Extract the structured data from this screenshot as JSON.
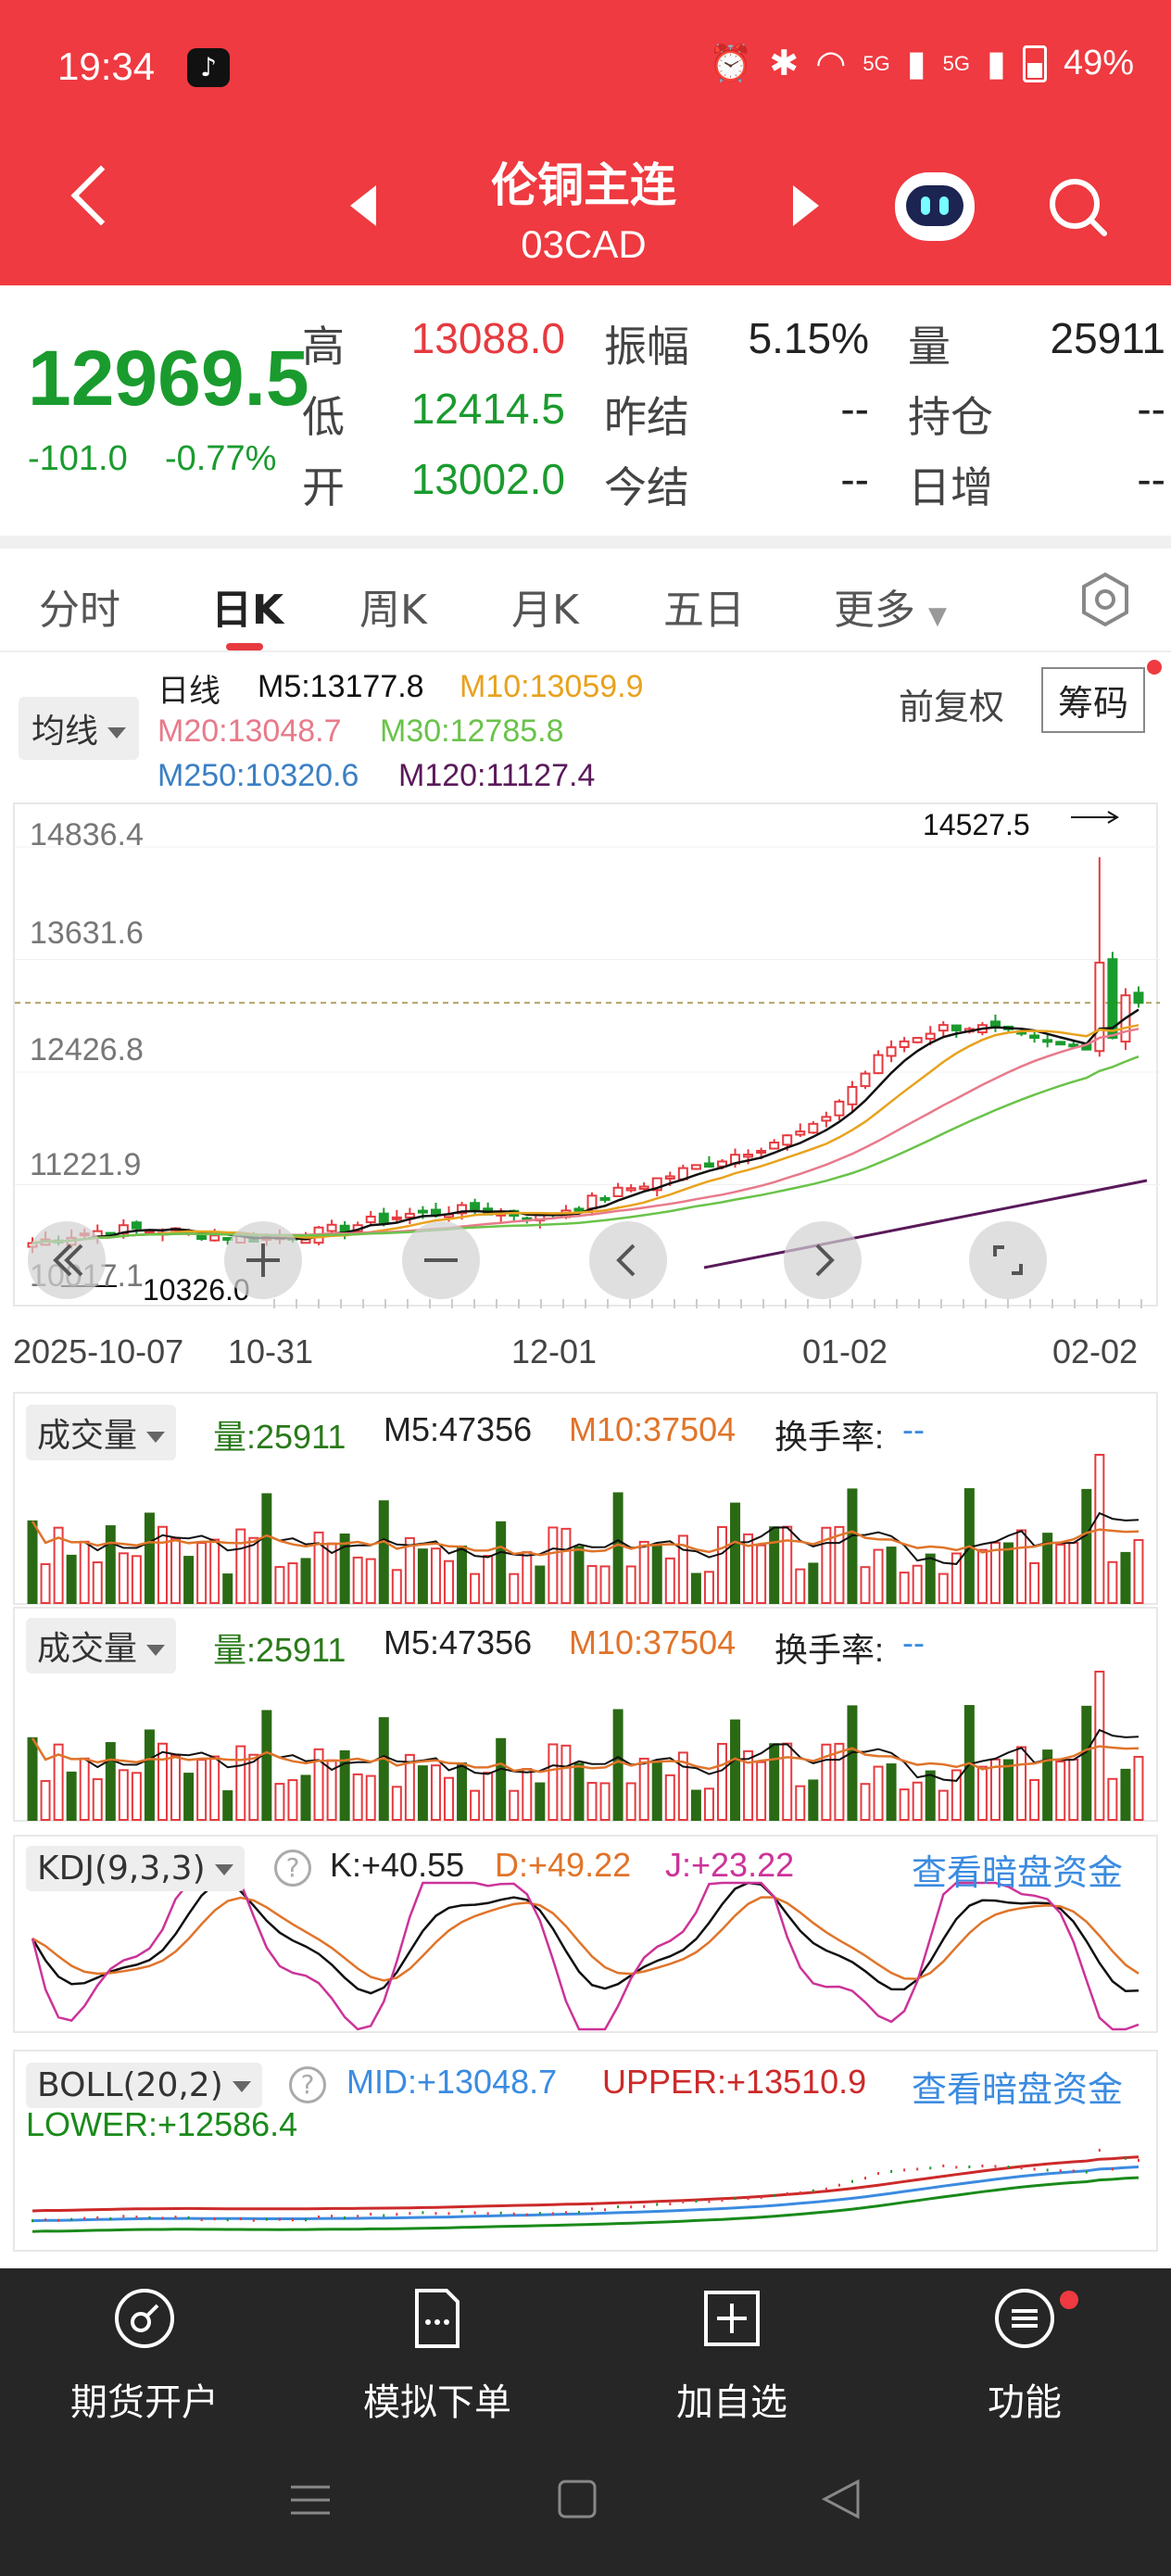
{
  "status_bar": {
    "time": "19:34",
    "network": "5G",
    "battery": "49%"
  },
  "header": {
    "title": "伦铜主连",
    "code": "03CAD"
  },
  "quote": {
    "price": "12969.5",
    "change": "-101.0",
    "change_pct": "-0.77%",
    "high_label": "高",
    "high": "13088.0",
    "low_label": "低",
    "low": "12414.5",
    "open_label": "开",
    "open": "13002.0",
    "amp_label": "振幅",
    "amp": "5.15%",
    "prev_settle_label": "昨结",
    "prev_settle": "--",
    "settle_label": "今结",
    "settle": "--",
    "vol_label": "量",
    "vol": "25911",
    "oi_label": "持仓",
    "oi": "--",
    "oi_chg_label": "日增",
    "oi_chg": "--"
  },
  "tabs": [
    "分时",
    "日K",
    "周K",
    "月K",
    "五日",
    "更多"
  ],
  "ma": {
    "chip": "均线",
    "period": "日线",
    "m5": "M5:13177.8",
    "m10": "M10:13059.9",
    "m20": "M20:13048.7",
    "m30": "M30:12785.8",
    "m250": "M250:10320.6",
    "m120": "M120:11127.4",
    "adjust": "前复权",
    "chips_btn": "筹码"
  },
  "main_chart": {
    "y_labels": [
      "14836.4",
      "13631.6",
      "12426.8",
      "11221.9",
      "10017.1"
    ],
    "max_marker": "14527.5",
    "min_marker": "10326.0",
    "x_labels": [
      "2025-10-07",
      "10-31",
      "12-01",
      "01-02",
      "02-02"
    ]
  },
  "volume1": {
    "chip": "成交量",
    "vol": "量:25911",
    "m5": "M5:47356",
    "m10": "M10:37504",
    "turnover_label": "换手率:",
    "turnover": "--"
  },
  "volume2": {
    "chip": "成交量",
    "vol": "量:25911",
    "m5": "M5:47356",
    "m10": "M10:37504",
    "turnover_label": "换手率:",
    "turnover": "--"
  },
  "kdj": {
    "chip": "KDJ(9,3,3)",
    "k": "K:+40.55",
    "d": "D:+49.22",
    "j": "J:+23.22",
    "link": "查看暗盘资金"
  },
  "boll": {
    "chip": "BOLL(20,2)",
    "mid": "MID:+13048.7",
    "upper": "UPPER:+13510.9",
    "lower": "LOWER:+12586.4",
    "link": "查看暗盘资金"
  },
  "bottom_nav": [
    "期货开户",
    "模拟下单",
    "加自选",
    "功能"
  ],
  "colors": {
    "up": "#e63a3f",
    "down": "#1a9b2e",
    "header": "#ee3a40",
    "ma5": "#111111",
    "ma10": "#e8a21d",
    "ma20": "#e87a8a",
    "ma30": "#6ac34a",
    "ma120": "#5a1a5a",
    "link": "#3b8be0"
  }
}
